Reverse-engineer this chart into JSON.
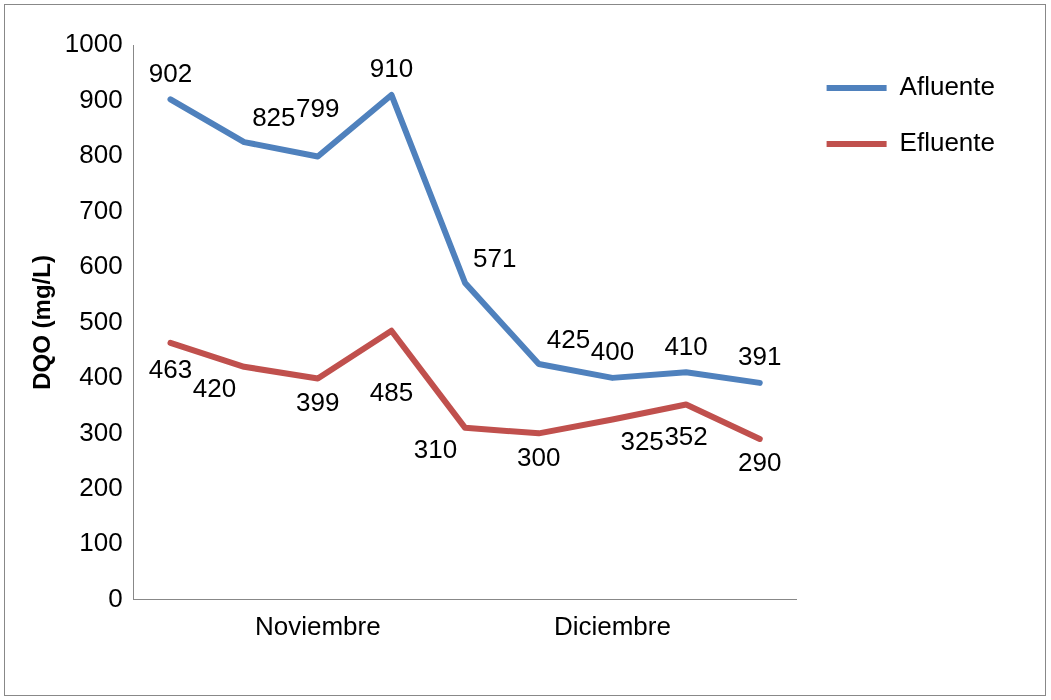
{
  "chart_data": {
    "type": "line",
    "ylabel": "DQO (mg/L)",
    "categories": [
      null,
      null,
      "Noviembre",
      null,
      null,
      null,
      "Diciembre",
      null,
      null
    ],
    "series": [
      {
        "name": "Afluente",
        "color": "#4f81bd",
        "values": [
          902,
          825,
          799,
          910,
          571,
          425,
          400,
          410,
          391
        ]
      },
      {
        "name": "Efluente",
        "color": "#c0504d",
        "values": [
          463,
          420,
          399,
          485,
          310,
          300,
          325,
          352,
          290
        ]
      }
    ],
    "ylim": [
      0,
      1000
    ],
    "yticks": [
      0,
      100,
      200,
      300,
      400,
      500,
      600,
      700,
      800,
      900,
      1000
    ],
    "grid": false,
    "legend": "right",
    "marker": "none",
    "line_style": "solid",
    "data_labels": true
  }
}
